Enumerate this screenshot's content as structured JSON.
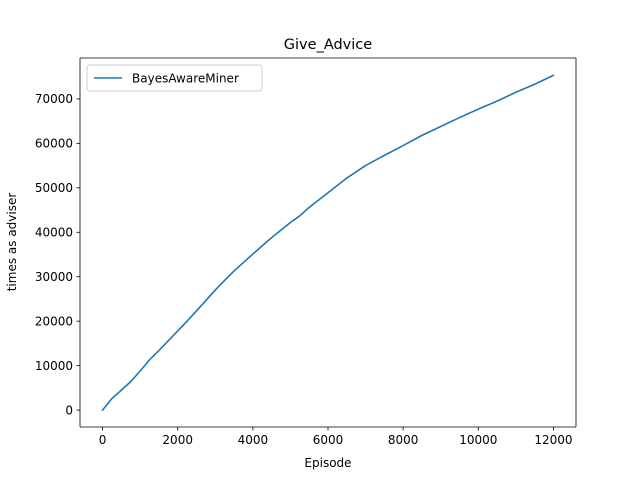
{
  "chart_data": {
    "type": "line",
    "title": "Give_Advice",
    "xlabel": "Episode",
    "ylabel": "times as adviser",
    "xlim": [
      -600,
      12600
    ],
    "ylim": [
      -3800,
      79200
    ],
    "xticks": [
      0,
      2000,
      4000,
      6000,
      8000,
      10000,
      12000
    ],
    "xtick_labels": [
      "0",
      "2000",
      "4000",
      "6000",
      "8000",
      "10000",
      "12000"
    ],
    "yticks": [
      0,
      10000,
      20000,
      30000,
      40000,
      50000,
      60000,
      70000
    ],
    "ytick_labels": [
      "0",
      "10000",
      "20000",
      "30000",
      "40000",
      "50000",
      "60000",
      "70000"
    ],
    "grid": false,
    "legend_position": "upper left",
    "series": [
      {
        "name": "BayesAwareMiner",
        "color": "#1f77b4",
        "x": [
          0,
          250,
          500,
          750,
          1000,
          1250,
          1500,
          2000,
          2250,
          2500,
          3000,
          3250,
          3500,
          4000,
          4500,
          5000,
          5250,
          5500,
          6000,
          6500,
          7000,
          7500,
          8000,
          8500,
          9000,
          9500,
          10000,
          10500,
          11000,
          11500,
          12000
        ],
        "y": [
          0,
          2600,
          4500,
          6400,
          8800,
          11300,
          13400,
          17800,
          20000,
          22300,
          27000,
          29200,
          31300,
          35100,
          38800,
          42200,
          43700,
          45600,
          48900,
          52200,
          55000,
          57300,
          59500,
          61800,
          63800,
          65800,
          67700,
          69500,
          71500,
          73300,
          75300
        ]
      }
    ]
  }
}
